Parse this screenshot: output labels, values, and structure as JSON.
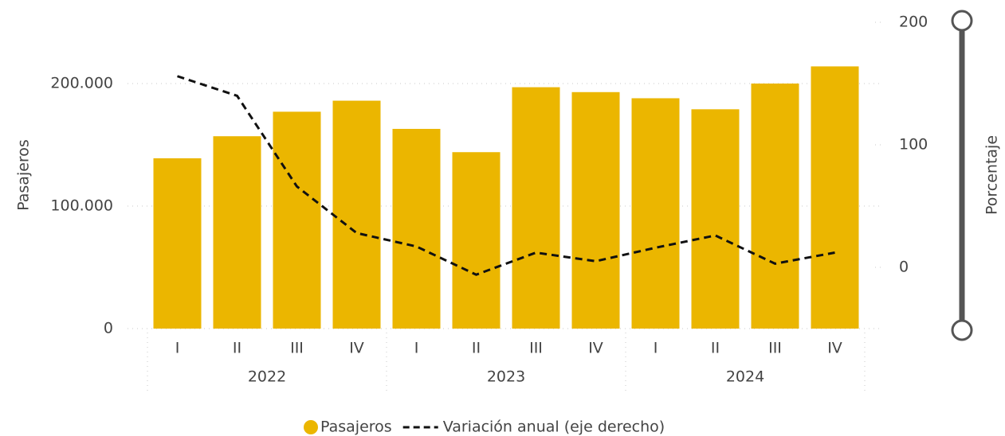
{
  "chart_data": {
    "type": "bar_line",
    "categories": [
      "I",
      "II",
      "III",
      "IV",
      "I",
      "II",
      "III",
      "IV",
      "I",
      "II",
      "III",
      "IV"
    ],
    "years": [
      "2022",
      "2023",
      "2024"
    ],
    "y_label": "Pasajeros",
    "y2_label": "Porcentaje",
    "ylim": [
      0,
      250000
    ],
    "yticks": [
      {
        "value": 0,
        "label": "0"
      },
      {
        "value": 100000,
        "label": "100.000"
      },
      {
        "value": 200000,
        "label": "200.000"
      }
    ],
    "y2lim": [
      -50,
      200
    ],
    "y2ticks": [
      0,
      100,
      200
    ],
    "grid": true,
    "series": [
      {
        "name": "Pasajeros",
        "color": "#EBB600",
        "kind": "bar",
        "values": [
          139000,
          157000,
          177000,
          186000,
          163000,
          144000,
          197000,
          193000,
          188000,
          179000,
          200000,
          214000
        ]
      },
      {
        "name": "Variación anual (eje derecho)",
        "color": "#111111",
        "kind": "line",
        "axis": "y2",
        "values": [
          156,
          140,
          66,
          28,
          17,
          -6,
          12,
          5,
          16,
          26,
          3,
          12
        ]
      }
    ]
  }
}
